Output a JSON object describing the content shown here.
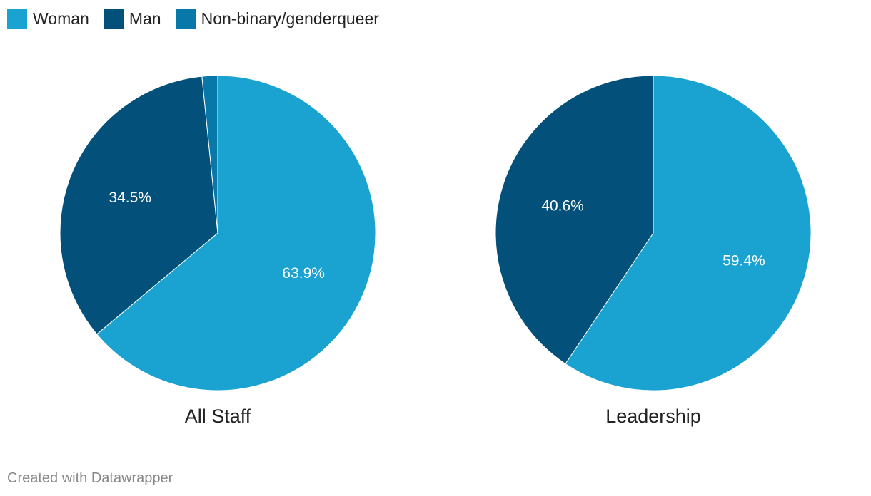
{
  "colors": {
    "woman": "#1aa2d0",
    "man": "#03507a",
    "nonbinary": "#0778a8"
  },
  "legend": [
    {
      "label": "Woman",
      "color": "#1aa2d0"
    },
    {
      "label": "Man",
      "color": "#03507a"
    },
    {
      "label": "Non-binary/genderqueer",
      "color": "#0778a8"
    }
  ],
  "chart_data": [
    {
      "type": "pie",
      "title": "All Staff",
      "slices": [
        {
          "label": "Woman",
          "value": 63.9,
          "display": "63.9%",
          "color": "#1aa2d0",
          "show_label": true
        },
        {
          "label": "Man",
          "value": 34.5,
          "display": "34.5%",
          "color": "#03507a",
          "show_label": true
        },
        {
          "label": "Non-binary/genderqueer",
          "value": 1.6,
          "display": "",
          "color": "#0778a8",
          "show_label": false
        }
      ]
    },
    {
      "type": "pie",
      "title": "Leadership",
      "slices": [
        {
          "label": "Woman",
          "value": 59.4,
          "display": "59.4%",
          "color": "#1aa2d0",
          "show_label": true
        },
        {
          "label": "Man",
          "value": 40.6,
          "display": "40.6%",
          "color": "#03507a",
          "show_label": true
        }
      ]
    }
  ],
  "credit": "Created with Datawrapper"
}
